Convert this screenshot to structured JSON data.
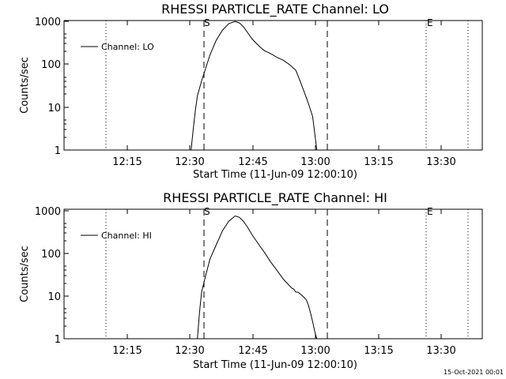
{
  "chart_data": [
    {
      "type": "line",
      "title": "RHESSI PARTICLE_RATE Channel: LO",
      "xlabel": "Start Time (11-Jun-09 12:00:10)",
      "ylabel": "Counts/sec",
      "y_scale": "log",
      "ylim": [
        1,
        1000
      ],
      "xlim": [
        "12:00:10",
        "13:40:00"
      ],
      "x_ticks": [
        "12:15",
        "12:30",
        "12:45",
        "13:00",
        "13:15",
        "13:30"
      ],
      "y_ticks": [
        "1",
        "10",
        "100",
        "1000"
      ],
      "legend": {
        "position": "top-left",
        "entries": [
          "Channel: LO"
        ]
      },
      "grid": false,
      "markers": [
        {
          "label": "S",
          "time": "12:33:30",
          "style": "dashed"
        },
        {
          "label": "",
          "time": "13:03:00",
          "style": "dashed"
        },
        {
          "label": "",
          "time": "12:09:00",
          "style": "dotted"
        },
        {
          "label": "E",
          "time": "13:26:00",
          "style": "dotted"
        },
        {
          "label": "",
          "time": "13:36:00",
          "style": "dotted"
        }
      ],
      "series": [
        {
          "name": "Channel: LO",
          "x": [
            "12:30:30",
            "12:31:00",
            "12:31:30",
            "12:32:00",
            "12:33:00",
            "12:34:00",
            "12:35:00",
            "12:36:30",
            "12:38:00",
            "12:39:30",
            "12:41:00",
            "12:42:00",
            "12:43:00",
            "12:44:00",
            "12:45:00",
            "12:46:00",
            "12:47:00",
            "12:48:00",
            "12:49:00",
            "12:50:00",
            "12:51:00",
            "12:52:30",
            "12:54:00",
            "12:55:30",
            "12:56:30",
            "12:57:30",
            "12:58:30",
            "12:59:30",
            "13:00:00",
            "13:00:30"
          ],
          "y": [
            1,
            3,
            8,
            18,
            40,
            80,
            160,
            350,
            600,
            850,
            950,
            880,
            720,
            520,
            380,
            300,
            240,
            200,
            180,
            160,
            140,
            120,
            95,
            70,
            40,
            22,
            12,
            6,
            2.5,
            1
          ]
        }
      ]
    },
    {
      "type": "line",
      "title": "RHESSI PARTICLE_RATE Channel: HI",
      "xlabel": "Start Time (11-Jun-09 12:00:10)",
      "ylabel": "Counts/sec",
      "y_scale": "log",
      "ylim": [
        1,
        1000
      ],
      "xlim": [
        "12:00:10",
        "13:40:00"
      ],
      "x_ticks": [
        "12:15",
        "12:30",
        "12:45",
        "13:00",
        "13:15",
        "13:30"
      ],
      "y_ticks": [
        "1",
        "10",
        "100",
        "1000"
      ],
      "legend": {
        "position": "top-left",
        "entries": [
          "Channel: HI"
        ]
      },
      "grid": false,
      "markers": [
        {
          "label": "S",
          "time": "12:33:30",
          "style": "dashed"
        },
        {
          "label": "",
          "time": "13:03:00",
          "style": "dashed"
        },
        {
          "label": "",
          "time": "12:09:00",
          "style": "dotted"
        },
        {
          "label": "E",
          "time": "13:26:00",
          "style": "dotted"
        },
        {
          "label": "",
          "time": "13:36:00",
          "style": "dotted"
        }
      ],
      "series": [
        {
          "name": "Channel: HI",
          "x": [
            "12:32:00",
            "12:32:30",
            "12:33:00",
            "12:34:00",
            "12:35:00",
            "12:36:30",
            "12:38:00",
            "12:39:30",
            "12:41:00",
            "12:42:00",
            "12:43:00",
            "12:44:00",
            "12:45:00",
            "12:46:30",
            "12:48:00",
            "12:49:30",
            "12:51:00",
            "12:52:30",
            "12:53:30",
            "12:54:30",
            "12:55:00",
            "12:55:30",
            "12:56:00",
            "12:57:00",
            "12:58:00",
            "12:58:30",
            "12:59:00",
            "12:59:30",
            "13:00:00",
            "13:00:30"
          ],
          "y": [
            1,
            4,
            12,
            30,
            70,
            150,
            320,
            530,
            700,
            650,
            520,
            380,
            260,
            160,
            100,
            60,
            38,
            24,
            19,
            15,
            14,
            12,
            12,
            10,
            8,
            6,
            4,
            2.5,
            1.5,
            1
          ]
        }
      ]
    }
  ],
  "footer": {
    "timestamp": "15-Oct-2021 00:01"
  }
}
